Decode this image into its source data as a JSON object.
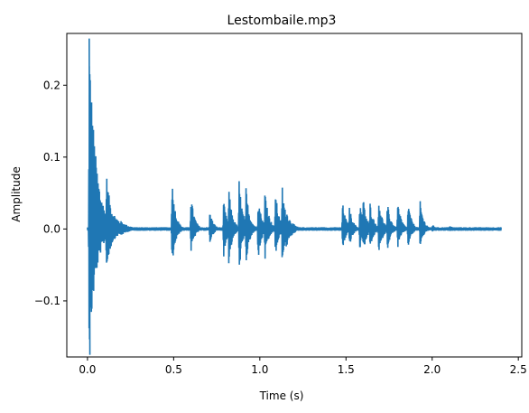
{
  "chart_data": {
    "type": "line",
    "title": "Lestombaile.mp3",
    "xlabel": "Time (s)",
    "ylabel": "Amplitude",
    "xlim": [
      -0.12,
      2.52
    ],
    "ylim": [
      -0.178,
      0.272
    ],
    "x_ticks": [
      0.0,
      0.5,
      1.0,
      1.5,
      2.0,
      2.5
    ],
    "x_tick_labels": [
      "0.0",
      "0.5",
      "1.0",
      "1.5",
      "2.0",
      "2.5"
    ],
    "y_ticks": [
      -0.1,
      0.0,
      0.1,
      0.2
    ],
    "y_tick_labels": [
      "−0.1",
      "0.0",
      "0.1",
      "0.2"
    ],
    "grid": false,
    "line_color": "#1f77b4",
    "series": [
      {
        "values_description_omitted": false,
        "duration": 2.4,
        "events": [
          {
            "t": 0.01,
            "pos": 0.265,
            "neg": -0.175,
            "decay": 0.04
          },
          {
            "t": 0.03,
            "pos": 0.06,
            "neg": -0.06,
            "decay": 0.03
          },
          {
            "t": 0.11,
            "pos": 0.078,
            "neg": -0.061,
            "decay": 0.03
          },
          {
            "t": 0.14,
            "pos": 0.028,
            "neg": -0.02,
            "decay": 0.05
          },
          {
            "t": 0.19,
            "pos": 0.012,
            "neg": -0.01,
            "decay": 0.05
          },
          {
            "t": 0.49,
            "pos": 0.071,
            "neg": -0.055,
            "decay": 0.02
          },
          {
            "t": 0.6,
            "pos": 0.05,
            "neg": -0.035,
            "decay": 0.02
          },
          {
            "t": 0.71,
            "pos": 0.026,
            "neg": -0.02,
            "decay": 0.02
          },
          {
            "t": 0.79,
            "pos": 0.04,
            "neg": -0.04,
            "decay": 0.02
          },
          {
            "t": 0.82,
            "pos": 0.058,
            "neg": -0.05,
            "decay": 0.02
          },
          {
            "t": 0.88,
            "pos": 0.07,
            "neg": -0.06,
            "decay": 0.02
          },
          {
            "t": 0.92,
            "pos": 0.059,
            "neg": -0.05,
            "decay": 0.02
          },
          {
            "t": 0.99,
            "pos": 0.048,
            "neg": -0.045,
            "decay": 0.02
          },
          {
            "t": 1.03,
            "pos": 0.063,
            "neg": -0.045,
            "decay": 0.02
          },
          {
            "t": 1.09,
            "pos": 0.056,
            "neg": -0.04,
            "decay": 0.02
          },
          {
            "t": 1.13,
            "pos": 0.064,
            "neg": -0.048,
            "decay": 0.02
          },
          {
            "t": 1.15,
            "pos": 0.03,
            "neg": -0.03,
            "decay": 0.03
          },
          {
            "t": 1.18,
            "pos": 0.012,
            "neg": -0.01,
            "decay": 0.03
          },
          {
            "t": 1.48,
            "pos": 0.038,
            "neg": -0.03,
            "decay": 0.02
          },
          {
            "t": 1.52,
            "pos": 0.032,
            "neg": -0.025,
            "decay": 0.02
          },
          {
            "t": 1.58,
            "pos": 0.039,
            "neg": -0.03,
            "decay": 0.02
          },
          {
            "t": 1.6,
            "pos": 0.044,
            "neg": -0.035,
            "decay": 0.02
          },
          {
            "t": 1.64,
            "pos": 0.038,
            "neg": -0.03,
            "decay": 0.02
          },
          {
            "t": 1.69,
            "pos": 0.045,
            "neg": -0.04,
            "decay": 0.02
          },
          {
            "t": 1.74,
            "pos": 0.038,
            "neg": -0.03,
            "decay": 0.02
          },
          {
            "t": 1.8,
            "pos": 0.04,
            "neg": -0.028,
            "decay": 0.02
          },
          {
            "t": 1.86,
            "pos": 0.038,
            "neg": -0.026,
            "decay": 0.02
          },
          {
            "t": 1.93,
            "pos": 0.04,
            "neg": -0.025,
            "decay": 0.02
          },
          {
            "t": 2.0,
            "pos": 0.006,
            "neg": -0.004,
            "decay": 0.03
          },
          {
            "t": 2.1,
            "pos": 0.005,
            "neg": -0.003,
            "decay": 0.03
          }
        ]
      }
    ]
  }
}
